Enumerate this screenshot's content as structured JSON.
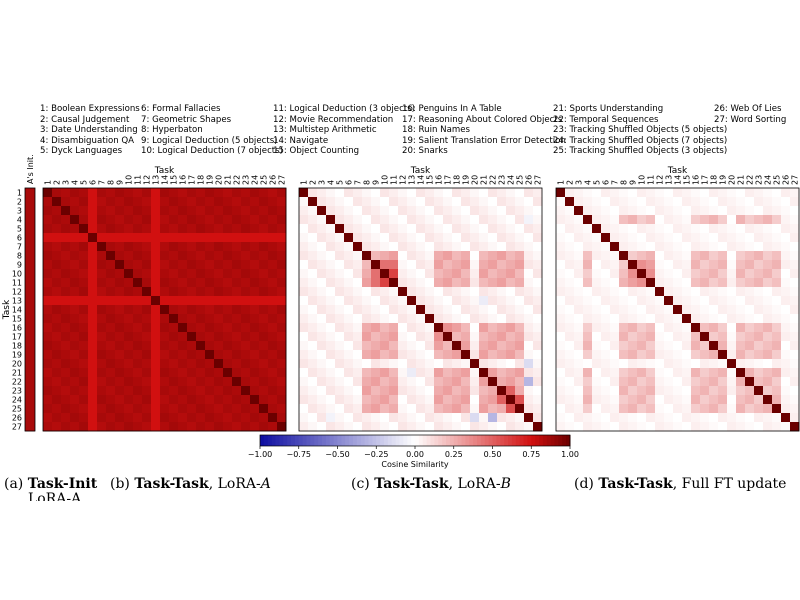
{
  "task_legend": [
    [
      "1: Boolean Expressions",
      "2: Causal Judgement",
      "3: Date Understanding",
      "4: Disambiguation QA",
      "5: Dyck Languages"
    ],
    [
      "6: Formal Fallacies",
      "7: Geometric Shapes",
      "8: Hyperbaton",
      "9: Logical Deduction (5 objects)",
      "10: Logical Deduction (7 objects)"
    ],
    [
      "11: Logical Deduction (3 objects)",
      "12: Movie Recommendation",
      "13: Multistep Arithmetic",
      "14: Navigate",
      "15: Object Counting"
    ],
    [
      "16: Penguins In A Table",
      "17: Reasoning About Colored Objects",
      "18: Ruin Names",
      "19: Salient Translation Error Detection",
      "20: Snarks"
    ],
    [
      "21: Sports Understanding",
      "22: Temporal Sequences",
      "23: Tracking Shuffled Objects (5 objects)",
      "24: Tracking Shuffled Objects (7 objects)",
      "25: Tracking Shuffled Objects (3 objects)"
    ],
    [
      "26: Web Of Lies",
      "27: Word Sorting"
    ]
  ],
  "captions": {
    "a": {
      "prefix": "(a) ",
      "bold": "Task-Init",
      "rest": "",
      "line2": "LoRA-A"
    },
    "b": {
      "prefix": "(b) ",
      "bold": "Task-Task",
      "rest": ", LoRA-",
      "italic": "A"
    },
    "c": {
      "prefix": "(c) ",
      "bold": "Task-Task",
      "rest": ", LoRA-",
      "italic": "B"
    },
    "d": {
      "prefix": "(d) ",
      "bold": "Task-Task",
      "rest": ", Full FT update"
    }
  },
  "chart_data": [
    {
      "type": "heatmap",
      "panel": "a",
      "column_label": "A's Init.",
      "ylabel": "Task",
      "rows": [
        "1",
        "2",
        "3",
        "4",
        "5",
        "6",
        "7",
        "8",
        "9",
        "10",
        "11",
        "12",
        "13",
        "14",
        "15",
        "16",
        "17",
        "18",
        "19",
        "20",
        "21",
        "22",
        "23",
        "24",
        "25",
        "26",
        "27"
      ],
      "values": [
        0.85,
        0.85,
        0.85,
        0.85,
        0.85,
        0.85,
        0.85,
        0.85,
        0.85,
        0.85,
        0.85,
        0.85,
        0.85,
        0.85,
        0.85,
        0.85,
        0.85,
        0.85,
        0.85,
        0.85,
        0.85,
        0.85,
        0.85,
        0.85,
        0.85,
        0.85,
        0.85
      ]
    },
    {
      "type": "heatmap",
      "panel": "b",
      "xlabel": "Task",
      "ylabel": "Task",
      "ticks": [
        "1",
        "2",
        "3",
        "4",
        "5",
        "6",
        "7",
        "8",
        "9",
        "10",
        "11",
        "12",
        "13",
        "14",
        "15",
        "16",
        "17",
        "18",
        "19",
        "20",
        "21",
        "22",
        "23",
        "24",
        "25",
        "26",
        "27"
      ],
      "diagonal": 1.0,
      "base_offdiagonal": 0.82,
      "light_rows": [
        5,
        12
      ],
      "light_value": 0.75
    },
    {
      "type": "heatmap",
      "panel": "c",
      "xlabel": "Task",
      "ticks": [
        "1",
        "2",
        "3",
        "4",
        "5",
        "6",
        "7",
        "8",
        "9",
        "10",
        "11",
        "12",
        "13",
        "14",
        "15",
        "16",
        "17",
        "18",
        "19",
        "20",
        "21",
        "22",
        "23",
        "24",
        "25",
        "26",
        "27"
      ],
      "diagonal": 1.0,
      "strong_group": [
        7,
        8,
        9,
        10,
        15,
        16,
        17,
        18,
        20,
        21,
        22,
        23,
        24
      ],
      "strong_value": 0.22,
      "weak_value": 0.08,
      "highlights": [
        {
          "i": 8,
          "j": 9,
          "v": 0.45
        },
        {
          "i": 8,
          "j": 10,
          "v": 0.45
        },
        {
          "i": 9,
          "j": 10,
          "v": 0.6
        },
        {
          "i": 22,
          "j": 23,
          "v": 0.5
        },
        {
          "i": 23,
          "j": 24,
          "v": 0.55
        },
        {
          "i": 15,
          "j": 16,
          "v": 0.35
        }
      ],
      "negatives": [
        {
          "i": 21,
          "j": 25,
          "v": -0.3
        },
        {
          "i": 19,
          "j": 25,
          "v": -0.15
        },
        {
          "i": 3,
          "j": 25,
          "v": -0.05
        },
        {
          "i": 12,
          "j": 20,
          "v": -0.08
        }
      ]
    },
    {
      "type": "heatmap",
      "panel": "d",
      "xlabel": "Task",
      "ticks": [
        "1",
        "2",
        "3",
        "4",
        "5",
        "6",
        "7",
        "8",
        "9",
        "10",
        "11",
        "12",
        "13",
        "14",
        "15",
        "16",
        "17",
        "18",
        "19",
        "20",
        "21",
        "22",
        "23",
        "24",
        "25",
        "26",
        "27"
      ],
      "diagonal": 1.0,
      "strong_group": [
        3,
        7,
        8,
        9,
        10,
        15,
        16,
        17,
        18,
        20,
        21,
        22,
        23,
        24
      ],
      "strong_value": 0.16,
      "weak_value": 0.05,
      "highlights": [
        {
          "i": 8,
          "j": 9,
          "v": 0.35
        },
        {
          "i": 9,
          "j": 10,
          "v": 0.35
        },
        {
          "i": 8,
          "j": 10,
          "v": 0.3
        }
      ]
    }
  ],
  "colorbar": {
    "label": "Cosine Similarity",
    "ticks": [
      "−1.00",
      "−0.75",
      "−0.50",
      "−0.25",
      "0.00",
      "0.25",
      "0.50",
      "0.75",
      "1.00"
    ],
    "tick_values": [
      -1,
      -0.75,
      -0.5,
      -0.25,
      0,
      0.25,
      0.5,
      0.75,
      1
    ],
    "range": [
      -1,
      1
    ]
  },
  "colors": {
    "negative": "#0c0ca0",
    "zero": "#ffffff",
    "positive": "#d11010",
    "max": "#6b0000"
  }
}
